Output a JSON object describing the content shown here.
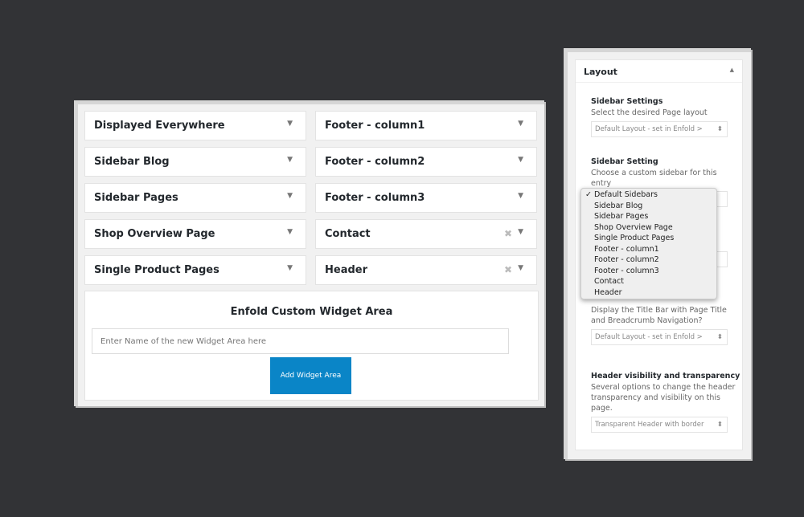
{
  "widgets": [
    {
      "title": "Displayed Everywhere",
      "removable": false
    },
    {
      "title": "Footer - column1",
      "removable": false
    },
    {
      "title": "Sidebar Blog",
      "removable": false
    },
    {
      "title": "Footer - column2",
      "removable": false
    },
    {
      "title": "Sidebar Pages",
      "removable": false
    },
    {
      "title": "Footer - column3",
      "removable": false
    },
    {
      "title": "Shop Overview Page",
      "removable": false
    },
    {
      "title": "Contact",
      "removable": true
    },
    {
      "title": "Single Product Pages",
      "removable": false
    },
    {
      "title": "Header",
      "removable": true
    }
  ],
  "custom": {
    "title": "Enfold Custom Widget Area",
    "placeholder": "Enter Name of the new Widget Area here",
    "button": "Add Widget Area"
  },
  "layout": {
    "title": "Layout",
    "sidebar_settings": {
      "label": "Sidebar Settings",
      "desc": "Select the desired Page layout",
      "value": "Default Layout - set in Enfold > "
    },
    "sidebar_setting": {
      "label": "Sidebar Setting",
      "desc": "Choose a custom sidebar for this entry"
    },
    "title_bar": {
      "desc": "Display the Title Bar with Page Title and Breadcrumb Navigation?",
      "value": "Default Layout - set in Enfold > "
    },
    "header": {
      "label": "Header visibility and transparency",
      "desc": "Several options to change the header transparency and visibility on this page.",
      "value": "Transparent Header with border"
    }
  },
  "dropdown": {
    "selected": "Default Sidebars",
    "options": [
      "Default Sidebars",
      "Sidebar Blog",
      "Sidebar Pages",
      "Shop Overview Page",
      "Single Product Pages",
      "Footer - column1",
      "Footer - column2",
      "Footer - column3",
      "Contact",
      "Header"
    ]
  },
  "icons": {
    "collapse": "triangle-down-icon",
    "remove": "close-icon",
    "expand": "triangle-up-icon",
    "check": "checkmark-icon"
  }
}
